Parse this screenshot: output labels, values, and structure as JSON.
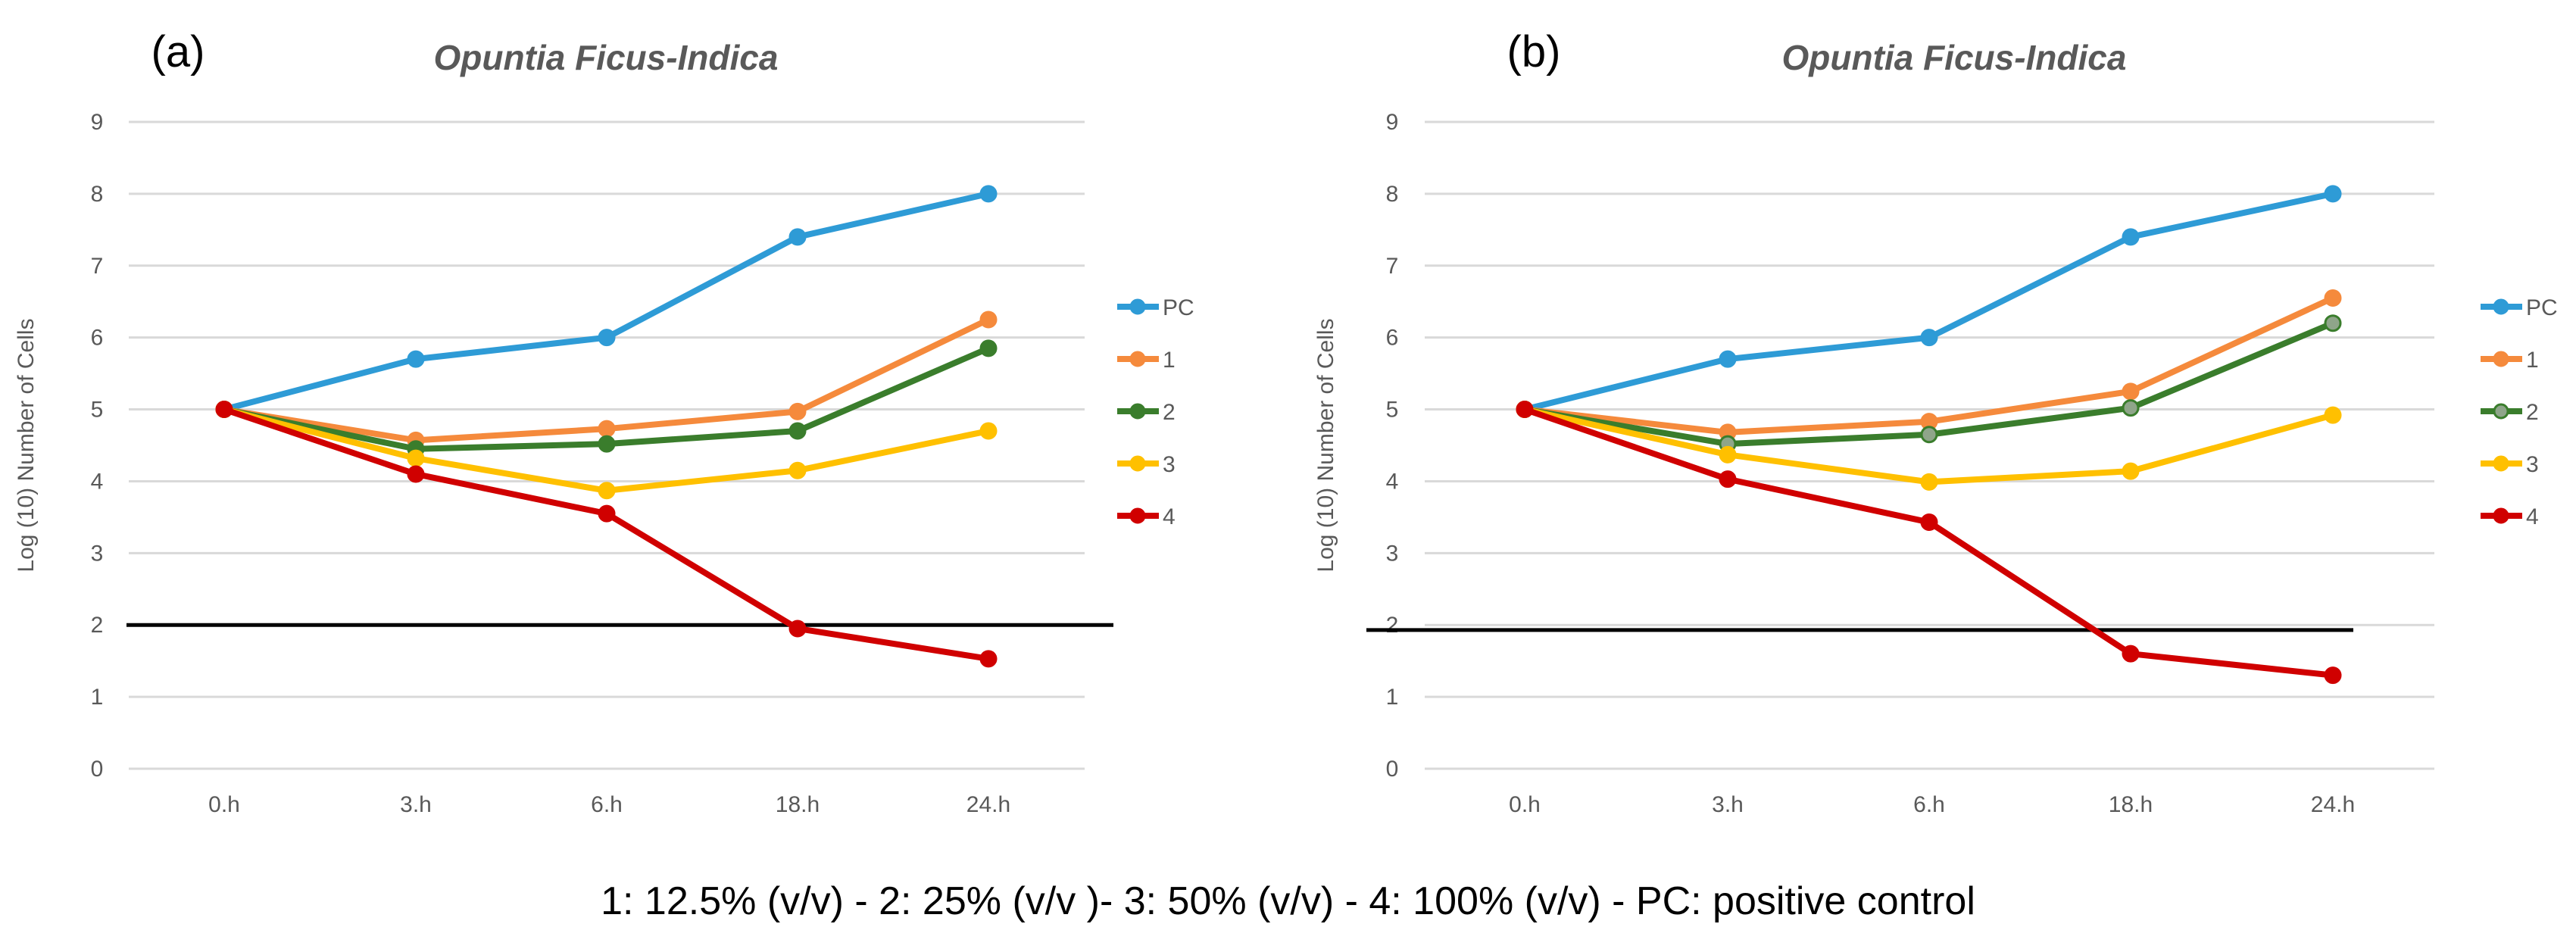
{
  "caption": "1: 12.5% (v/v) - 2: 25% (v/v )- 3: 50% (v/v) - 4: 100% (v/v) - PC: positive control",
  "chart_data": [
    {
      "panel": "(a)",
      "type": "line",
      "title": "Opuntia Ficus-Indica",
      "xlabel": "",
      "ylabel": "Log (10) Number of Cells",
      "categories": [
        "0.h",
        "3.h",
        "6.h",
        "18.h",
        "24.h"
      ],
      "yticks": [
        "0",
        "1",
        "2",
        "3",
        "4",
        "5",
        "6",
        "7",
        "8",
        "9"
      ],
      "ylim": [
        0,
        9
      ],
      "grid": true,
      "legend": "right",
      "threshold": 2,
      "series": [
        {
          "name": "PC",
          "color": "#2E9BD6",
          "values": [
            5,
            5.7,
            6.0,
            7.4,
            8.0
          ]
        },
        {
          "name": "1",
          "color": "#F58A3C",
          "values": [
            5,
            4.57,
            4.73,
            4.97,
            6.25
          ]
        },
        {
          "name": "2",
          "color": "#3A7D2C",
          "values": [
            5,
            4.45,
            4.52,
            4.7,
            5.85
          ]
        },
        {
          "name": "3",
          "color": "#FFC000",
          "values": [
            5,
            4.32,
            3.87,
            4.15,
            4.7
          ]
        },
        {
          "name": "4",
          "color": "#D00000",
          "values": [
            5,
            4.1,
            3.55,
            1.95,
            1.53
          ]
        }
      ]
    },
    {
      "panel": "(b)",
      "type": "line",
      "title": "Opuntia Ficus-Indica",
      "xlabel": "",
      "ylabel": "Log (10) Number of Cells",
      "categories": [
        "0.h",
        "3.h",
        "6.h",
        "18.h",
        "24.h"
      ],
      "yticks": [
        "0",
        "1",
        "2",
        "3",
        "4",
        "5",
        "6",
        "7",
        "8",
        "9"
      ],
      "ylim": [
        0,
        9
      ],
      "grid": true,
      "legend": "right",
      "threshold": 1.93,
      "series": [
        {
          "name": "PC",
          "color": "#2E9BD6",
          "values": [
            5,
            5.7,
            6.0,
            7.4,
            8.0
          ]
        },
        {
          "name": "1",
          "color": "#F58A3C",
          "values": [
            5,
            4.68,
            4.83,
            5.25,
            6.55
          ]
        },
        {
          "name": "2",
          "color": "#3A7D2C",
          "values": [
            5,
            4.52,
            4.65,
            5.02,
            6.2
          ]
        },
        {
          "name": "3",
          "color": "#FFC000",
          "values": [
            5,
            4.37,
            3.99,
            4.14,
            4.92
          ]
        },
        {
          "name": "4",
          "color": "#D00000",
          "values": [
            5,
            4.03,
            3.43,
            1.6,
            1.3
          ]
        }
      ]
    }
  ]
}
